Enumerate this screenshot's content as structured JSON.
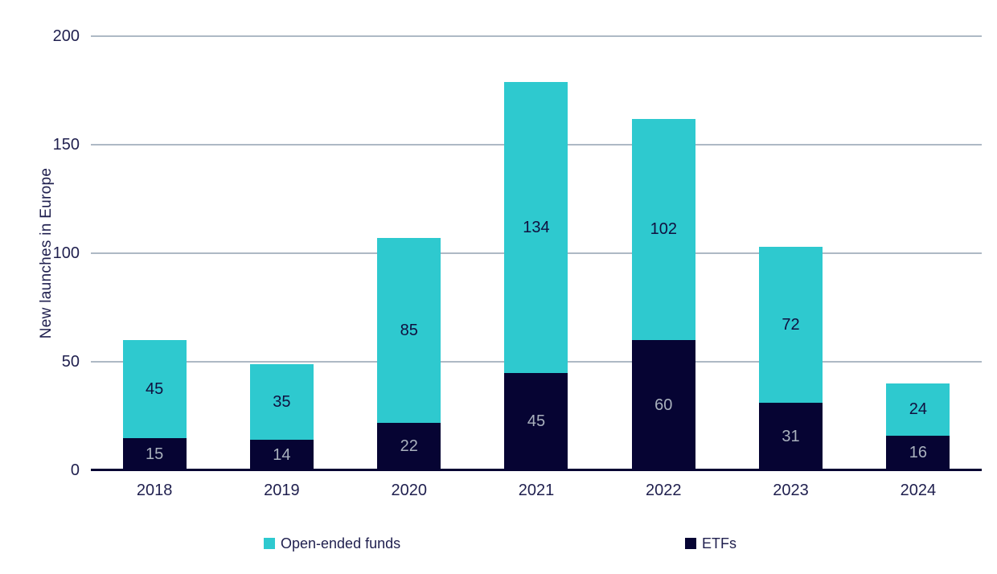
{
  "chart_data": {
    "type": "bar",
    "stacked": true,
    "title": "",
    "xlabel": "",
    "ylabel": "New launches in Europe",
    "categories": [
      "2018",
      "2019",
      "2020",
      "2021",
      "2022",
      "2023",
      "2024"
    ],
    "series": [
      {
        "name": "ETFs",
        "color": "#060433",
        "label_color": "#a9b1bd",
        "values": [
          15,
          14,
          22,
          45,
          60,
          31,
          16
        ]
      },
      {
        "name": "Open-ended funds",
        "color": "#2ec9cf",
        "label_color": "#10103f",
        "values": [
          45,
          35,
          85,
          134,
          102,
          72,
          24
        ]
      }
    ],
    "yticks": [
      0,
      50,
      100,
      150,
      200
    ],
    "ylim": [
      0,
      200
    ],
    "grid": true,
    "gridline_color": "#aeb9c5",
    "axis_line_color": "#060433",
    "text_color": "#1f1f4e",
    "legend_position": "bottom",
    "legend": [
      {
        "label": "Open-ended funds",
        "color": "#2ec9cf"
      },
      {
        "label": "ETFs",
        "color": "#060433"
      }
    ]
  }
}
